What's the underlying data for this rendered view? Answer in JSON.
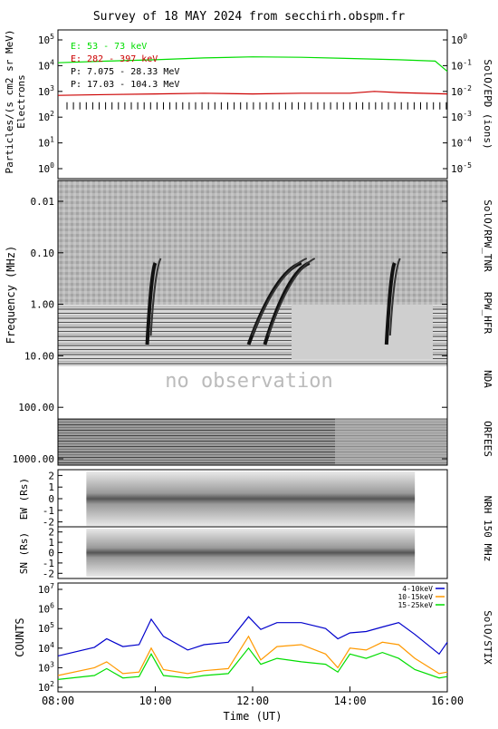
{
  "title": "Survey of 18 MAY 2024 from secchirh.obspm.fr",
  "colors": {
    "frame": "#000000",
    "e_low": "#00dd00",
    "e_high": "#cc0000",
    "protons": "#000000",
    "stix_low": "#0000cc",
    "stix_mid": "#ff9900",
    "stix_high": "#00dd00",
    "no_obs_text": "#bbbbbb"
  },
  "time_axis": {
    "ticks": [
      "08:00",
      "10:00",
      "12:00",
      "14:00",
      "16:00"
    ],
    "label": "Time (UT)"
  },
  "no_observation": "no observation",
  "chart_data": [
    {
      "id": "epd",
      "type": "line",
      "ylabel": "Particles/(s cm2 sr MeV) Electrons",
      "right_label": "SolO/EPD (ions)",
      "left_ticks": [
        "10^0",
        "10^1",
        "10^2",
        "10^3",
        "10^4",
        "10^5"
      ],
      "right_ticks": [
        "10^-5",
        "10^-4",
        "10^-3",
        "10^-2",
        "10^-1",
        "10^0"
      ],
      "ylim_left": [
        1,
        100000
      ],
      "ylim_right": [
        1e-05,
        1
      ],
      "legend": [
        {
          "name": "E: 53 - 73 keV",
          "color": "#00dd00"
        },
        {
          "name": "E: 282 - 397 keV",
          "color": "#cc0000"
        },
        {
          "name": "P: 7.075 - 28.33 MeV",
          "color": "#000000"
        },
        {
          "name": "P: 17.03 - 104.3 MeV",
          "color": "#000000"
        }
      ],
      "series": [
        {
          "name": "E: 53 - 73 keV",
          "x": [
            "08:00",
            "09:00",
            "10:00",
            "11:00",
            "12:00",
            "13:00",
            "14:00",
            "15:00",
            "15:45",
            "16:00"
          ],
          "y": [
            13000,
            15000,
            17000,
            20000,
            22000,
            21000,
            19000,
            17000,
            15000,
            6000
          ]
        },
        {
          "name": "E: 282 - 397 keV",
          "x": [
            "08:00",
            "09:00",
            "10:00",
            "11:00",
            "12:00",
            "13:00",
            "14:00",
            "14:30",
            "15:00",
            "16:00"
          ],
          "y": [
            700,
            750,
            800,
            850,
            800,
            850,
            850,
            1000,
            900,
            800
          ]
        },
        {
          "name": "P: 7.075 - 28.33 MeV",
          "note_free": true,
          "x": [
            "08:00",
            "16:00"
          ],
          "y": [
            0.002,
            0.002
          ]
        }
      ]
    },
    {
      "id": "rpw",
      "type": "heatmap",
      "ylabel": "Frequency (MHz)",
      "y_ticks": [
        "0.01",
        "0.10",
        "1.00",
        "10.00",
        "100.00",
        "1000.00"
      ],
      "right_labels": [
        "SolO/RPW_TNR",
        "RPW_HFR",
        "NDA",
        "ORFEES"
      ],
      "bursts": [
        {
          "start": "09:50",
          "end": "10:00"
        },
        {
          "start": "11:55",
          "end": "13:00"
        },
        {
          "start": "12:15",
          "end": "13:10"
        },
        {
          "start": "14:45",
          "end": "14:55"
        }
      ]
    },
    {
      "id": "nrh_ew",
      "type": "heatmap",
      "ylabel": "EW (Rs)",
      "y_ticks": [
        "2",
        "1",
        "0",
        "-1",
        "-2"
      ],
      "ylim": [
        -2.5,
        2.5
      ],
      "right_label": "NRH 150 MHz",
      "coverage": [
        "08:35",
        "15:20"
      ]
    },
    {
      "id": "nrh_sn",
      "type": "heatmap",
      "ylabel": "SN (Rs)",
      "y_ticks": [
        "2",
        "1",
        "0",
        "-1",
        "-2"
      ],
      "ylim": [
        -2.5,
        2.5
      ],
      "coverage": [
        "08:35",
        "15:20"
      ]
    },
    {
      "id": "stix",
      "type": "line",
      "ylabel": "COUNTS",
      "right_label": "SolO/STIX",
      "y_ticks": [
        "10^2",
        "10^3",
        "10^4",
        "10^5",
        "10^6",
        "10^7"
      ],
      "ylim": [
        100,
        10000000
      ],
      "legend_placement": "top-right",
      "series": [
        {
          "name": "4-10keV",
          "x": [
            "08:00",
            "08:45",
            "09:00",
            "09:20",
            "09:40",
            "09:55",
            "10:10",
            "10:40",
            "11:00",
            "11:30",
            "11:55",
            "12:10",
            "12:30",
            "13:00",
            "13:30",
            "13:45",
            "14:00",
            "14:20",
            "14:40",
            "15:00",
            "15:20",
            "15:50",
            "16:00"
          ],
          "y": [
            4000,
            11000,
            30000,
            12000,
            15000,
            300000,
            40000,
            8000,
            15000,
            20000,
            400000,
            90000,
            200000,
            200000,
            100000,
            30000,
            60000,
            70000,
            120000,
            200000,
            50000,
            5000,
            20000
          ]
        },
        {
          "name": "10-15keV",
          "x": [
            "08:00",
            "08:45",
            "09:00",
            "09:20",
            "09:40",
            "09:55",
            "10:10",
            "10:40",
            "11:00",
            "11:30",
            "11:55",
            "12:10",
            "12:30",
            "13:00",
            "13:30",
            "13:45",
            "14:00",
            "14:20",
            "14:40",
            "15:00",
            "15:20",
            "15:50",
            "16:00"
          ],
          "y": [
            400,
            1000,
            2000,
            500,
            600,
            10000,
            800,
            500,
            700,
            900,
            40000,
            2500,
            12000,
            15000,
            5000,
            1000,
            10000,
            8000,
            20000,
            15000,
            3000,
            500,
            600
          ]
        },
        {
          "name": "15-25keV",
          "x": [
            "08:00",
            "08:45",
            "09:00",
            "09:20",
            "09:40",
            "09:55",
            "10:10",
            "10:40",
            "11:00",
            "11:30",
            "11:55",
            "12:10",
            "12:30",
            "13:00",
            "13:30",
            "13:45",
            "14:00",
            "14:20",
            "14:40",
            "15:00",
            "15:20",
            "15:50",
            "16:00"
          ],
          "y": [
            250,
            400,
            900,
            300,
            350,
            5000,
            400,
            300,
            400,
            500,
            10000,
            1500,
            3000,
            2000,
            1500,
            600,
            5000,
            3000,
            6000,
            3000,
            800,
            300,
            350
          ]
        }
      ]
    }
  ]
}
